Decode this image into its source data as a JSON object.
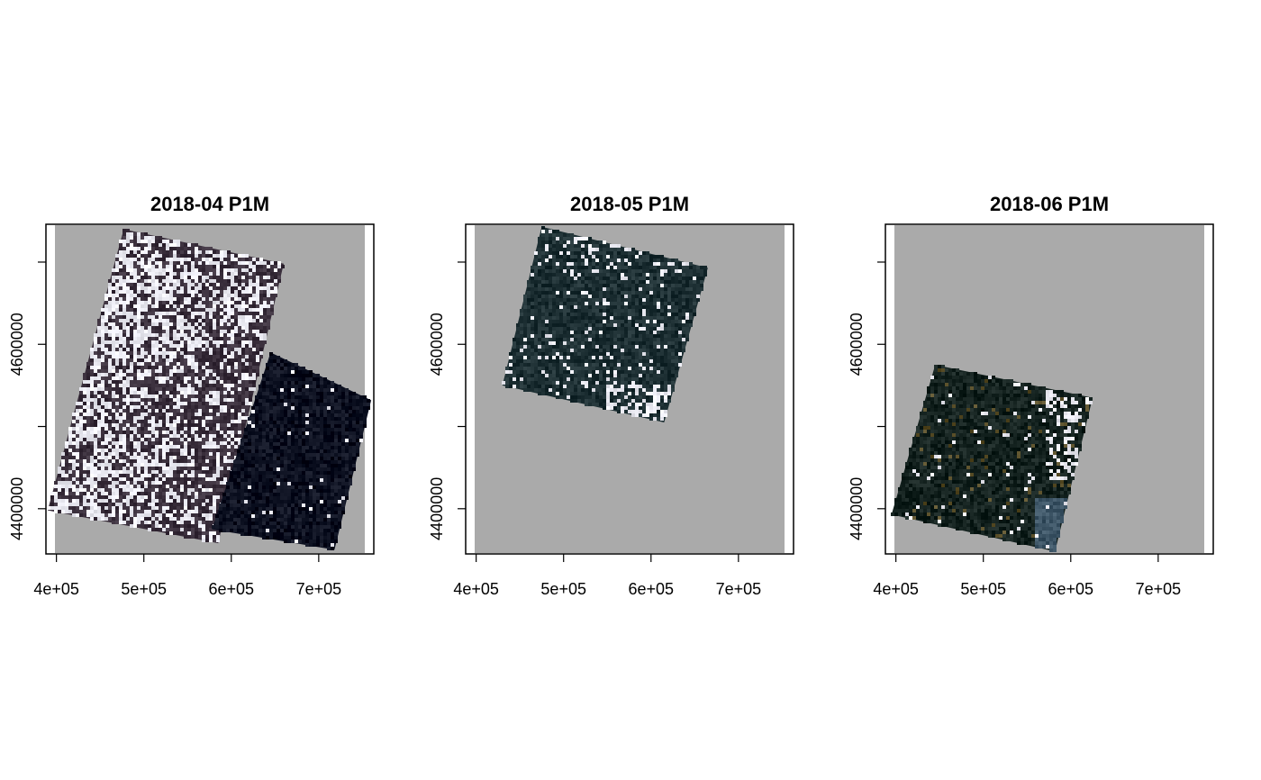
{
  "chart_data": {
    "type": "heatmap",
    "description_type": "multi-panel raster RGB composite",
    "background_color": "#aaaaaa",
    "x_ticks": {
      "values": [
        400000,
        500000,
        600000,
        700000
      ],
      "labels": [
        "4e+05",
        "5e+05",
        "6e+05",
        "7e+05"
      ]
    },
    "y_ticks": {
      "values": [
        4400000,
        4500000,
        4600000,
        4700000
      ],
      "labels": [
        "4400000",
        "",
        "4600000",
        ""
      ]
    },
    "xlim": [
      388000,
      763000
    ],
    "ylim": [
      4345000,
      4746000
    ],
    "panels": [
      {
        "title": "2018-04 P1M",
        "footprints": [
          {
            "corners": [
              [
                477000,
                4740000
              ],
              [
                660000,
                4698000
              ],
              [
                585000,
                4358000
              ],
              [
                390000,
                4398000
              ]
            ],
            "tone": "#3a2f3c",
            "cloud": 0.45
          },
          {
            "corners": [
              [
                645000,
                4590000
              ],
              [
                760000,
                4532000
              ],
              [
                718000,
                4350000
              ],
              [
                578000,
                4375000
              ]
            ],
            "tone": "#0c1020",
            "cloud": 0.03
          }
        ]
      },
      {
        "title": "2018-05 P1M",
        "footprints": [
          {
            "corners": [
              [
                475000,
                4743000
              ],
              [
                665000,
                4693000
              ],
              [
                615000,
                4505000
              ],
              [
                430000,
                4550000
              ]
            ],
            "tone": "#1d2f33",
            "cloud": 0.12
          }
        ]
      },
      {
        "title": "2018-06 P1M",
        "footprints": [
          {
            "corners": [
              [
                445000,
                4575000
              ],
              [
                625000,
                4535000
              ],
              [
                582000,
                4348000
              ],
              [
                395000,
                4393000
              ]
            ],
            "tone": "#14221f",
            "cloud": 0.08
          }
        ]
      }
    ]
  }
}
